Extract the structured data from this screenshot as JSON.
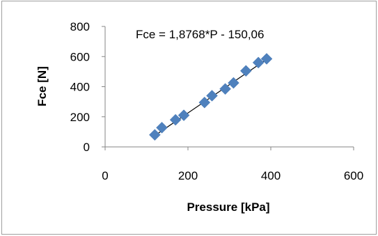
{
  "chart_data": {
    "type": "scatter",
    "xlabel": "Pressure [kPa]",
    "ylabel": "Fce [N]",
    "xlim": [
      0,
      600
    ],
    "ylim": [
      0,
      800
    ],
    "xticks": [
      "0",
      "200",
      "400",
      "600"
    ],
    "yticks": [
      "0",
      "200",
      "400",
      "600",
      "800"
    ],
    "grid": false,
    "marker_color": "#4f81bd",
    "trendline": {
      "label": "Fce = 1,8768*P - 150,06",
      "slope": 1.8768,
      "intercept": -150.06,
      "x_range": [
        120,
        390
      ],
      "color": "#000000"
    },
    "points": [
      {
        "x": 120,
        "y": 80
      },
      {
        "x": 137,
        "y": 128
      },
      {
        "x": 170,
        "y": 180
      },
      {
        "x": 190,
        "y": 210
      },
      {
        "x": 240,
        "y": 295
      },
      {
        "x": 258,
        "y": 340
      },
      {
        "x": 290,
        "y": 385
      },
      {
        "x": 310,
        "y": 425
      },
      {
        "x": 340,
        "y": 505
      },
      {
        "x": 370,
        "y": 560
      },
      {
        "x": 390,
        "y": 585
      }
    ]
  }
}
